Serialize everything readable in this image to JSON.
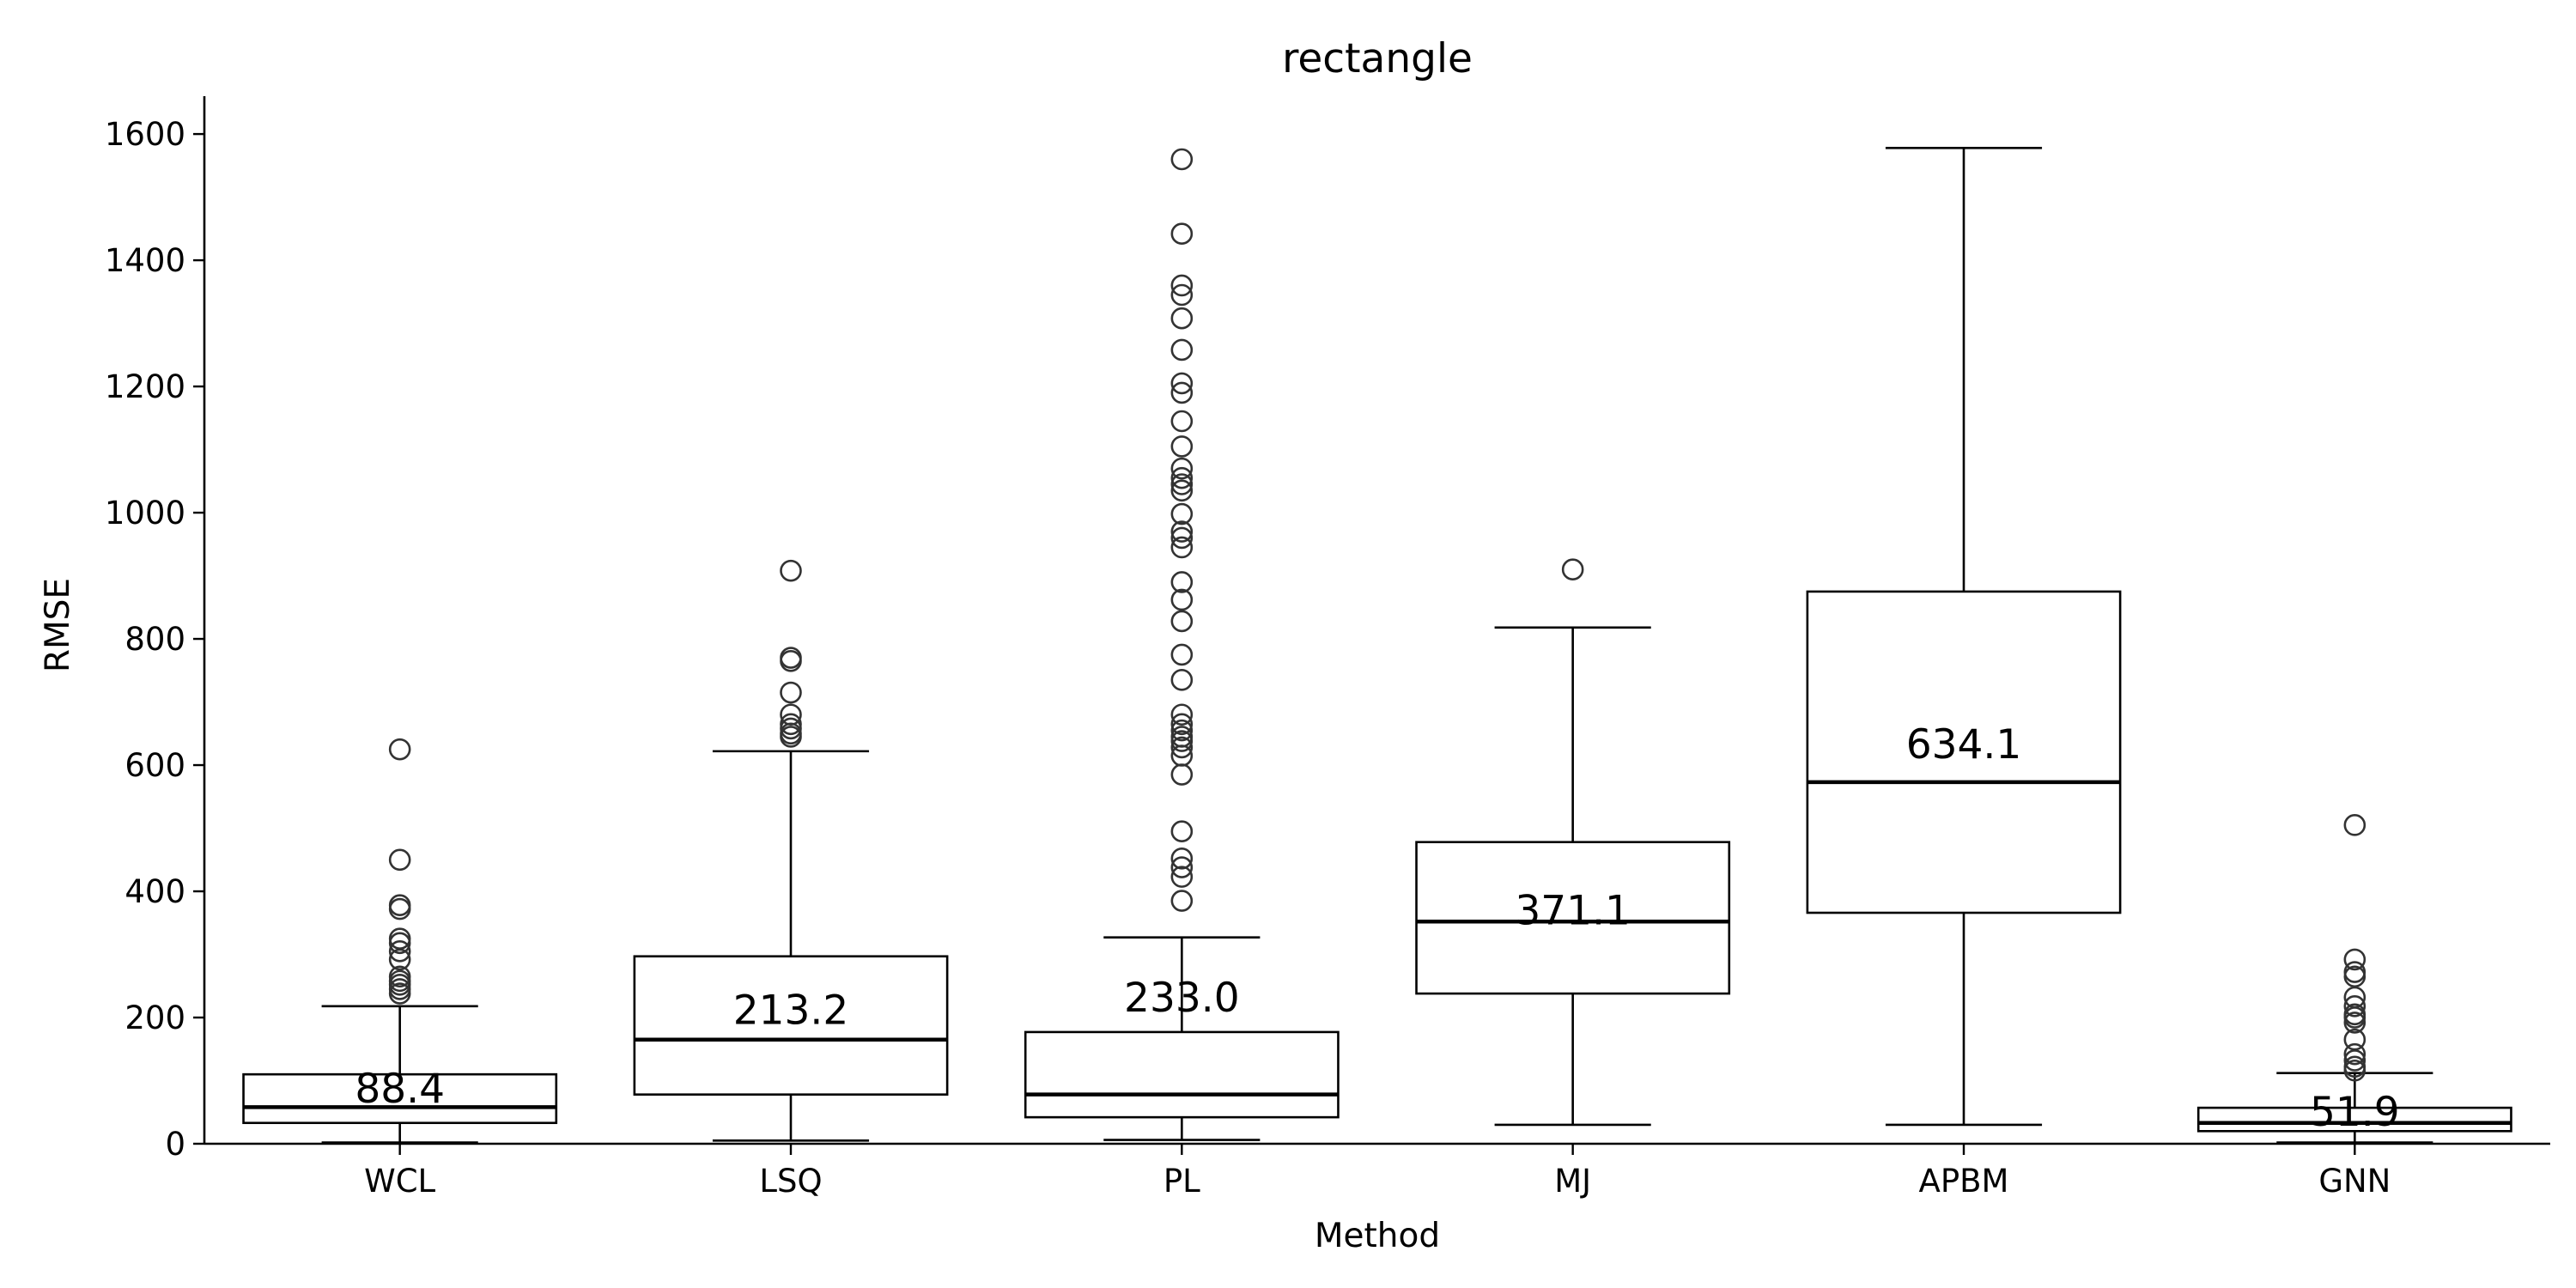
{
  "chart_data": {
    "type": "boxplot",
    "title": "rectangle",
    "xlabel": "Method",
    "ylabel": "RMSE",
    "ylim": [
      0,
      1660
    ],
    "yticks": [
      0,
      200,
      400,
      600,
      800,
      1000,
      1200,
      1400,
      1600
    ],
    "grid": false,
    "categories": [
      "WCL",
      "LSQ",
      "PL",
      "MJ",
      "APBM",
      "GNN"
    ],
    "boxes": [
      {
        "name": "WCL",
        "whisker_low": 2,
        "q1": 33,
        "median": 58,
        "q3": 110,
        "whisker_high": 218,
        "mean_label": "88.4",
        "mean": 88.4,
        "outliers": [
          625,
          450,
          378,
          372,
          325,
          318,
          305,
          292,
          265,
          258,
          252,
          245,
          238
        ]
      },
      {
        "name": "LSQ",
        "whisker_low": 5,
        "q1": 78,
        "median": 165,
        "q3": 297,
        "whisker_high": 622,
        "mean_label": "213.2",
        "mean": 213.2,
        "outliers": [
          908,
          770,
          765,
          715,
          680,
          665,
          658,
          650,
          645
        ]
      },
      {
        "name": "PL",
        "whisker_low": 6,
        "q1": 42,
        "median": 78,
        "q3": 177,
        "whisker_high": 327,
        "mean_label": "233.0",
        "mean": 233.0,
        "outliers": [
          1560,
          1442,
          1360,
          1345,
          1308,
          1258,
          1205,
          1190,
          1145,
          1105,
          1070,
          1055,
          1045,
          1035,
          998,
          970,
          960,
          945,
          890,
          862,
          828,
          775,
          735,
          680,
          665,
          655,
          645,
          638,
          628,
          615,
          585,
          495,
          452,
          438,
          423,
          385
        ]
      },
      {
        "name": "MJ",
        "whisker_low": 30,
        "q1": 238,
        "median": 352,
        "q3": 478,
        "whisker_high": 818,
        "mean_label": "371.1",
        "mean": 371.1,
        "outliers": [
          910
        ]
      },
      {
        "name": "APBM",
        "whisker_low": 30,
        "q1": 366,
        "median": 573,
        "q3": 875,
        "whisker_high": 1578,
        "mean_label": "634.1",
        "mean": 634.1,
        "outliers": []
      },
      {
        "name": "GNN",
        "whisker_low": 2,
        "q1": 20,
        "median": 33,
        "q3": 57,
        "whisker_high": 112,
        "mean_label": "51.9",
        "mean": 51.9,
        "outliers": [
          505,
          292,
          272,
          265,
          232,
          218,
          205,
          200,
          192,
          165,
          142,
          132,
          122,
          116
        ]
      }
    ]
  }
}
